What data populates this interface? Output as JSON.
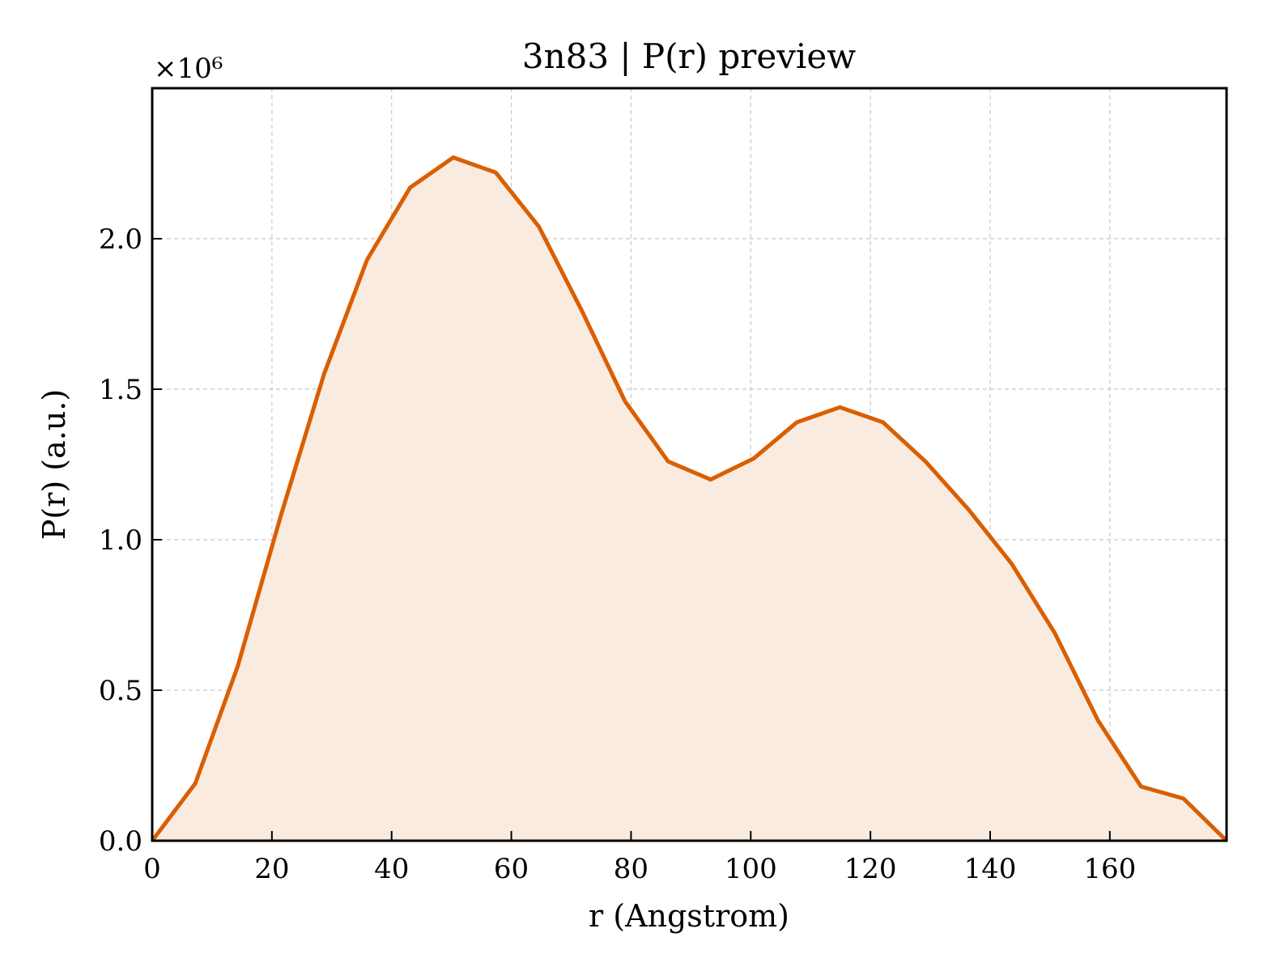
{
  "chart_data": {
    "type": "area",
    "title": "3n83 | P(r) preview",
    "xlabel": "r (Angstrom)",
    "ylabel": "P(r) (a.u.)",
    "y_offset_label": "×10⁶",
    "xlim": [
      0,
      179.5
    ],
    "ylim": [
      0,
      2.5
    ],
    "xticks": [
      0,
      20,
      40,
      60,
      80,
      100,
      120,
      140,
      160
    ],
    "xtick_labels": [
      "0",
      "20",
      "40",
      "60",
      "80",
      "100",
      "120",
      "140",
      "160"
    ],
    "yticks": [
      0,
      0.5,
      1.0,
      1.5,
      2.0
    ],
    "ytick_labels": [
      "0.0",
      "0.5",
      "1.0",
      "1.5",
      "2.0"
    ],
    "grid": true,
    "line_color": "#d95f02",
    "fill_color": "#faebe0",
    "series": [
      {
        "x": [
          0,
          7.2,
          14.3,
          21.5,
          28.7,
          35.9,
          43.1,
          50.3,
          57.4,
          64.6,
          71.8,
          79.0,
          86.2,
          93.3,
          100.5,
          107.7,
          114.9,
          122.1,
          129.2,
          136.4,
          143.6,
          150.8,
          158.0,
          165.2,
          172.3,
          179.5
        ],
        "y": [
          0.0,
          0.19,
          0.58,
          1.08,
          1.55,
          1.93,
          2.17,
          2.27,
          2.22,
          2.04,
          1.76,
          1.46,
          1.26,
          1.2,
          1.27,
          1.39,
          1.44,
          1.39,
          1.26,
          1.1,
          0.92,
          0.69,
          0.4,
          0.18,
          0.14,
          0.0
        ]
      }
    ]
  }
}
